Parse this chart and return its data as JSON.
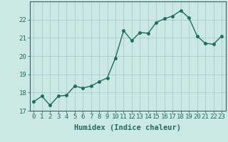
{
  "x": [
    0,
    1,
    2,
    3,
    4,
    5,
    6,
    7,
    8,
    9,
    10,
    11,
    12,
    13,
    14,
    15,
    16,
    17,
    18,
    19,
    20,
    21,
    22,
    23
  ],
  "y": [
    17.5,
    17.8,
    17.3,
    17.8,
    17.85,
    18.35,
    18.25,
    18.35,
    18.6,
    18.8,
    19.9,
    21.4,
    20.85,
    21.3,
    21.25,
    21.85,
    22.05,
    22.2,
    22.5,
    22.1,
    21.1,
    20.7,
    20.65,
    21.1
  ],
  "line_color": "#1a7060",
  "marker": "o",
  "marker_size": 2.5,
  "bg_color": "#cce8e4",
  "grid_color": "#aaccca",
  "xlabel": "Humidex (Indice chaleur)",
  "ylim": [
    17,
    23
  ],
  "xlim": [
    -0.5,
    23.5
  ],
  "yticks": [
    17,
    18,
    19,
    20,
    21,
    22
  ],
  "xticks": [
    0,
    1,
    2,
    3,
    4,
    5,
    6,
    7,
    8,
    9,
    10,
    11,
    12,
    13,
    14,
    15,
    16,
    17,
    18,
    19,
    20,
    21,
    22,
    23
  ],
  "xlabel_fontsize": 7.5,
  "tick_fontsize": 6.5,
  "line_width": 1.0,
  "spine_color": "#336666"
}
